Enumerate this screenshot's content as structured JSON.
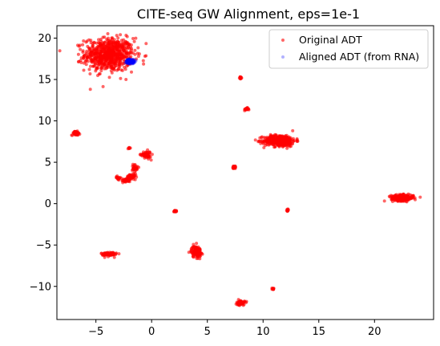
{
  "chart_data": {
    "type": "scatter",
    "title": "CITE-seq GW Alignment, eps=1e-1",
    "xlabel": "",
    "ylabel": "",
    "xlim": [
      -8.5,
      25.3
    ],
    "ylim": [
      -14.0,
      21.5
    ],
    "xticks": [
      -5,
      0,
      5,
      10,
      15,
      20
    ],
    "yticks": [
      -10,
      -5,
      0,
      5,
      10,
      15,
      20
    ],
    "xtick_labels": [
      "−5",
      "0",
      "5",
      "10",
      "15",
      "20"
    ],
    "ytick_labels": [
      "−10",
      "−5",
      "0",
      "5",
      "10",
      "15",
      "20"
    ],
    "grid": false,
    "legend_position": "top-right",
    "series": [
      {
        "name": "Original ADT",
        "color": "#ff0000",
        "alpha": 0.6,
        "clusters": [
          {
            "x": -3.8,
            "y": 18.0,
            "sx": 1.1,
            "sy": 1.0,
            "n": 700
          },
          {
            "x": -6.8,
            "y": 8.5,
            "sx": 0.18,
            "sy": 0.12,
            "n": 60
          },
          {
            "x": 8.0,
            "y": 15.2,
            "sx": 0.05,
            "sy": 0.05,
            "n": 15
          },
          {
            "x": 8.5,
            "y": 11.4,
            "sx": 0.1,
            "sy": 0.08,
            "n": 25
          },
          {
            "x": 11.5,
            "y": 7.6,
            "sx": 0.7,
            "sy": 0.35,
            "n": 380
          },
          {
            "x": 22.5,
            "y": 0.7,
            "sx": 0.5,
            "sy": 0.18,
            "n": 260
          },
          {
            "x": -0.5,
            "y": 5.9,
            "sx": 0.22,
            "sy": 0.22,
            "n": 60
          },
          {
            "x": -2.0,
            "y": 6.7,
            "sx": 0.04,
            "sy": 0.04,
            "n": 8
          },
          {
            "x": -1.5,
            "y": 4.4,
            "sx": 0.12,
            "sy": 0.25,
            "n": 30
          },
          {
            "x": -1.8,
            "y": 3.2,
            "sx": 0.22,
            "sy": 0.18,
            "n": 60
          },
          {
            "x": -2.3,
            "y": 2.8,
            "sx": 0.18,
            "sy": 0.12,
            "n": 40
          },
          {
            "x": -3.0,
            "y": 3.1,
            "sx": 0.1,
            "sy": 0.1,
            "n": 20
          },
          {
            "x": 7.4,
            "y": 4.4,
            "sx": 0.08,
            "sy": 0.08,
            "n": 20
          },
          {
            "x": 2.1,
            "y": -0.9,
            "sx": 0.06,
            "sy": 0.05,
            "n": 15
          },
          {
            "x": 12.2,
            "y": -0.8,
            "sx": 0.05,
            "sy": 0.06,
            "n": 15
          },
          {
            "x": 4.0,
            "y": -5.8,
            "sx": 0.22,
            "sy": 0.35,
            "n": 120
          },
          {
            "x": -3.8,
            "y": -6.1,
            "sx": 0.35,
            "sy": 0.15,
            "n": 70
          },
          {
            "x": 10.9,
            "y": -10.3,
            "sx": 0.05,
            "sy": 0.05,
            "n": 12
          },
          {
            "x": 8.0,
            "y": -12.0,
            "sx": 0.18,
            "sy": 0.15,
            "n": 60
          }
        ]
      },
      {
        "name": "Aligned ADT (from RNA)",
        "color": "#0000ff",
        "alpha": 0.3,
        "clusters": [
          {
            "x": -1.9,
            "y": 17.2,
            "sx": 0.18,
            "sy": 0.12,
            "n": 250
          }
        ]
      }
    ]
  }
}
